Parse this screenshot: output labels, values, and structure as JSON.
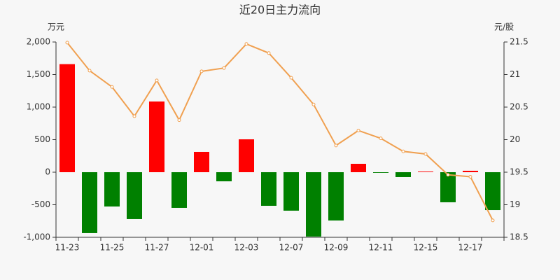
{
  "chart_data": {
    "type": "bar",
    "title": "近20日主力流向",
    "y_label": "万元",
    "y2_label": "元/股",
    "categories": [
      "11-23",
      null,
      "11-25",
      null,
      "11-27",
      null,
      "12-01",
      null,
      "12-03",
      null,
      "12-07",
      null,
      "12-09",
      null,
      "12-11",
      null,
      "12-15",
      null,
      "12-17",
      null
    ],
    "series": [
      {
        "type": "bar",
        "positive_color": "#ff0000",
        "negative_color": "#008000",
        "values": [
          1660,
          -935,
          -527,
          -720,
          1086,
          -548,
          312,
          -140,
          505,
          -516,
          -591,
          -989,
          -742,
          129,
          -10,
          -75,
          10,
          -462,
          22,
          -581
        ]
      },
      {
        "type": "line",
        "axis": "y2",
        "color": "#f0a050",
        "values": [
          21.49,
          21.06,
          20.81,
          20.36,
          20.91,
          20.3,
          21.05,
          21.1,
          21.47,
          21.33,
          20.95,
          20.54,
          19.91,
          20.14,
          20.02,
          19.82,
          19.78,
          19.46,
          19.43,
          18.76
        ]
      }
    ],
    "ylim": [
      -1000,
      2000
    ],
    "yticks": [
      {
        "value": -1000,
        "label": "-1,000"
      },
      -500,
      0,
      500,
      {
        "value": 1000,
        "label": "1,000"
      },
      {
        "value": 1500,
        "label": "1,500"
      },
      {
        "value": 2000,
        "label": "2,000"
      }
    ],
    "y2lim": [
      18.5,
      21.5
    ],
    "y2ticks": [
      18.5,
      19,
      19.5,
      20,
      20.5,
      21,
      21.5
    ]
  }
}
